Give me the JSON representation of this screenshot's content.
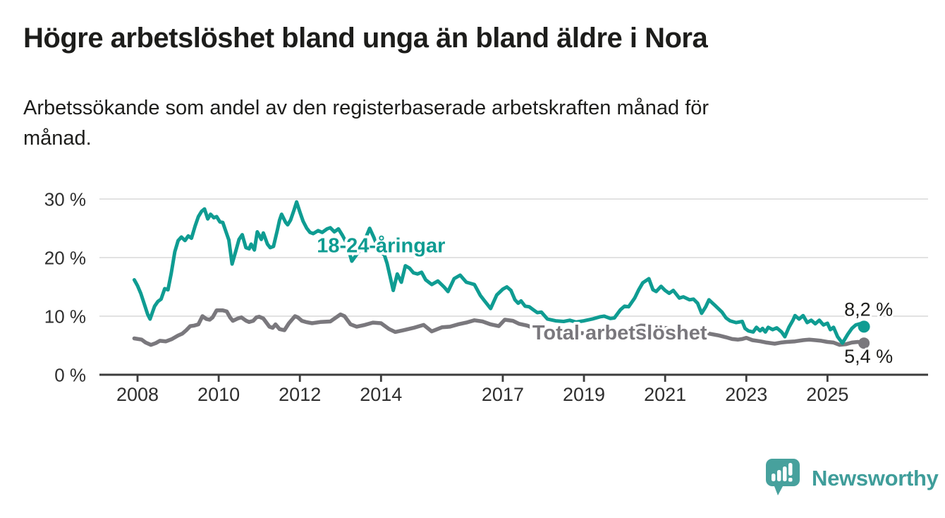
{
  "title": "Högre arbetslöshet bland unga än bland äldre i Nora",
  "subtitle_lines": [
    "Arbetssökande som andel av den registerbaserade arbetskraften månad för",
    "månad."
  ],
  "logo": {
    "text": "Newsworthy",
    "icon": "speech-bubble-bar-chart-icon",
    "text_color": "#3f9d9a",
    "bubble_color": "#47a19d"
  },
  "colors": {
    "young_series": "#0f9c92",
    "total_series": "#7a787d",
    "gridline": "#d9d9d9",
    "axis": "#3c3c3c",
    "text": "#1d1d1b"
  },
  "chart_data": {
    "type": "line",
    "title": "Högre arbetslöshet bland unga än bland äldre i Nora",
    "subtitle": "Arbetssökande som andel av den registerbaserade arbetskraften månad för månad.",
    "unit": "%",
    "grid": true,
    "y_axis": {
      "min": 0,
      "max": 30,
      "ticks": [
        {
          "value": 0,
          "label": "0 %"
        },
        {
          "value": 10,
          "label": "10 %"
        },
        {
          "value": 20,
          "label": "20 %"
        },
        {
          "value": 30,
          "label": "30 %"
        }
      ]
    },
    "x_axis": {
      "tick_years": [
        2008,
        2010,
        2012,
        2014,
        2017,
        2019,
        2021,
        2023,
        2025
      ],
      "start": 2007.9,
      "end": 2026.3
    },
    "series": [
      {
        "name": "18-24-åringar",
        "color": "#0f9c92",
        "line_width": 5,
        "end_value": 8.2,
        "end_label": "8,2 %",
        "label_anchor": {
          "year": 2014.0,
          "value": 20.9
        },
        "points": [
          [
            2007.92,
            16.2
          ],
          [
            2008.0,
            15.2
          ],
          [
            2008.08,
            13.9
          ],
          [
            2008.17,
            12.0
          ],
          [
            2008.25,
            10.3
          ],
          [
            2008.31,
            9.5
          ],
          [
            2008.42,
            11.7
          ],
          [
            2008.5,
            12.5
          ],
          [
            2008.58,
            12.9
          ],
          [
            2008.67,
            14.7
          ],
          [
            2008.75,
            14.5
          ],
          [
            2008.83,
            17.3
          ],
          [
            2008.92,
            21.0
          ],
          [
            2009.0,
            22.9
          ],
          [
            2009.08,
            23.5
          ],
          [
            2009.17,
            22.9
          ],
          [
            2009.25,
            23.7
          ],
          [
            2009.33,
            23.3
          ],
          [
            2009.42,
            25.4
          ],
          [
            2009.5,
            27.0
          ],
          [
            2009.58,
            27.9
          ],
          [
            2009.65,
            28.3
          ],
          [
            2009.73,
            26.6
          ],
          [
            2009.8,
            27.4
          ],
          [
            2009.88,
            26.8
          ],
          [
            2009.95,
            27.0
          ],
          [
            2010.03,
            26.1
          ],
          [
            2010.1,
            26.0
          ],
          [
            2010.17,
            24.6
          ],
          [
            2010.25,
            23.0
          ],
          [
            2010.33,
            18.9
          ],
          [
            2010.42,
            21.1
          ],
          [
            2010.5,
            23.1
          ],
          [
            2010.58,
            23.9
          ],
          [
            2010.67,
            21.7
          ],
          [
            2010.75,
            21.5
          ],
          [
            2010.8,
            22.3
          ],
          [
            2010.88,
            21.3
          ],
          [
            2010.95,
            24.4
          ],
          [
            2011.0,
            23.8
          ],
          [
            2011.05,
            23.1
          ],
          [
            2011.1,
            24.2
          ],
          [
            2011.2,
            22.3
          ],
          [
            2011.27,
            21.7
          ],
          [
            2011.35,
            21.9
          ],
          [
            2011.45,
            24.8
          ],
          [
            2011.5,
            26.4
          ],
          [
            2011.55,
            27.4
          ],
          [
            2011.65,
            26.0
          ],
          [
            2011.7,
            25.6
          ],
          [
            2011.77,
            26.4
          ],
          [
            2011.85,
            28.0
          ],
          [
            2011.92,
            29.5
          ],
          [
            2012.0,
            27.8
          ],
          [
            2012.08,
            26.2
          ],
          [
            2012.17,
            25.0
          ],
          [
            2012.25,
            24.3
          ],
          [
            2012.33,
            24.1
          ],
          [
            2012.45,
            24.6
          ],
          [
            2012.55,
            24.3
          ],
          [
            2012.67,
            24.9
          ],
          [
            2012.75,
            25.1
          ],
          [
            2012.85,
            24.4
          ],
          [
            2012.95,
            24.9
          ],
          [
            2013.05,
            23.8
          ],
          [
            2013.15,
            22.5
          ],
          [
            2013.28,
            19.4
          ],
          [
            2013.45,
            21.0
          ],
          [
            2013.6,
            23.0
          ],
          [
            2013.72,
            25.0
          ],
          [
            2013.82,
            23.5
          ],
          [
            2013.92,
            21.8
          ],
          [
            2014.0,
            20.8
          ],
          [
            2014.08,
            20.5
          ],
          [
            2014.15,
            19.0
          ],
          [
            2014.3,
            14.4
          ],
          [
            2014.4,
            17.2
          ],
          [
            2014.5,
            15.8
          ],
          [
            2014.6,
            18.6
          ],
          [
            2014.7,
            18.2
          ],
          [
            2014.8,
            17.4
          ],
          [
            2014.9,
            17.2
          ],
          [
            2015.0,
            17.5
          ],
          [
            2015.1,
            16.2
          ],
          [
            2015.25,
            15.4
          ],
          [
            2015.4,
            16.0
          ],
          [
            2015.55,
            15.0
          ],
          [
            2015.65,
            14.2
          ],
          [
            2015.8,
            16.4
          ],
          [
            2015.95,
            17.0
          ],
          [
            2016.1,
            15.8
          ],
          [
            2016.2,
            15.6
          ],
          [
            2016.3,
            15.4
          ],
          [
            2016.45,
            13.5
          ],
          [
            2016.55,
            12.6
          ],
          [
            2016.7,
            11.3
          ],
          [
            2016.85,
            13.6
          ],
          [
            2017.0,
            14.6
          ],
          [
            2017.1,
            15.0
          ],
          [
            2017.2,
            14.4
          ],
          [
            2017.3,
            12.8
          ],
          [
            2017.38,
            12.2
          ],
          [
            2017.45,
            12.6
          ],
          [
            2017.55,
            11.7
          ],
          [
            2017.65,
            11.6
          ],
          [
            2017.75,
            11.1
          ],
          [
            2017.85,
            10.6
          ],
          [
            2017.95,
            10.7
          ],
          [
            2018.1,
            9.5
          ],
          [
            2018.3,
            9.2
          ],
          [
            2018.5,
            9.1
          ],
          [
            2018.65,
            9.3
          ],
          [
            2018.8,
            9.0
          ],
          [
            2019.0,
            9.2
          ],
          [
            2019.2,
            9.5
          ],
          [
            2019.4,
            9.9
          ],
          [
            2019.5,
            10.0
          ],
          [
            2019.65,
            9.6
          ],
          [
            2019.75,
            9.7
          ],
          [
            2019.9,
            11.1
          ],
          [
            2020.0,
            11.7
          ],
          [
            2020.1,
            11.6
          ],
          [
            2020.25,
            13.1
          ],
          [
            2020.35,
            14.5
          ],
          [
            2020.45,
            15.7
          ],
          [
            2020.6,
            16.4
          ],
          [
            2020.7,
            14.5
          ],
          [
            2020.78,
            14.2
          ],
          [
            2020.9,
            15.1
          ],
          [
            2021.0,
            14.4
          ],
          [
            2021.1,
            13.9
          ],
          [
            2021.2,
            14.4
          ],
          [
            2021.35,
            13.1
          ],
          [
            2021.45,
            13.3
          ],
          [
            2021.6,
            12.8
          ],
          [
            2021.7,
            12.9
          ],
          [
            2021.8,
            12.2
          ],
          [
            2021.9,
            10.5
          ],
          [
            2022.0,
            11.6
          ],
          [
            2022.08,
            12.8
          ],
          [
            2022.17,
            12.2
          ],
          [
            2022.25,
            11.7
          ],
          [
            2022.4,
            10.7
          ],
          [
            2022.5,
            9.7
          ],
          [
            2022.6,
            9.2
          ],
          [
            2022.75,
            8.9
          ],
          [
            2022.9,
            9.1
          ],
          [
            2022.97,
            7.9
          ],
          [
            2023.05,
            7.5
          ],
          [
            2023.17,
            7.3
          ],
          [
            2023.25,
            8.1
          ],
          [
            2023.34,
            7.5
          ],
          [
            2023.4,
            7.9
          ],
          [
            2023.47,
            7.3
          ],
          [
            2023.54,
            8.1
          ],
          [
            2023.65,
            7.7
          ],
          [
            2023.75,
            8.0
          ],
          [
            2023.87,
            7.3
          ],
          [
            2023.95,
            6.5
          ],
          [
            2024.05,
            8.1
          ],
          [
            2024.15,
            9.3
          ],
          [
            2024.2,
            10.1
          ],
          [
            2024.3,
            9.5
          ],
          [
            2024.4,
            10.1
          ],
          [
            2024.5,
            8.9
          ],
          [
            2024.6,
            9.3
          ],
          [
            2024.7,
            8.7
          ],
          [
            2024.8,
            9.3
          ],
          [
            2024.9,
            8.5
          ],
          [
            2025.0,
            8.8
          ],
          [
            2025.07,
            7.7
          ],
          [
            2025.15,
            8.1
          ],
          [
            2025.25,
            6.5
          ],
          [
            2025.37,
            5.4
          ],
          [
            2025.5,
            6.9
          ],
          [
            2025.6,
            7.9
          ],
          [
            2025.7,
            8.5
          ],
          [
            2025.8,
            8.7
          ],
          [
            2025.9,
            8.2
          ]
        ]
      },
      {
        "name": "Total arbetslöshet",
        "color": "#7a787d",
        "line_width": 5.5,
        "end_value": 5.4,
        "end_label": "5,4 %",
        "label_anchor": {
          "year": 2019.88,
          "value": 6.05
        },
        "points": [
          [
            2007.92,
            6.2
          ],
          [
            2008.1,
            6.0
          ],
          [
            2008.2,
            5.5
          ],
          [
            2008.33,
            5.1
          ],
          [
            2008.45,
            5.4
          ],
          [
            2008.55,
            5.8
          ],
          [
            2008.7,
            5.7
          ],
          [
            2008.85,
            6.1
          ],
          [
            2009.0,
            6.7
          ],
          [
            2009.1,
            7.0
          ],
          [
            2009.2,
            7.6
          ],
          [
            2009.3,
            8.3
          ],
          [
            2009.4,
            8.4
          ],
          [
            2009.5,
            8.6
          ],
          [
            2009.6,
            10.0
          ],
          [
            2009.7,
            9.5
          ],
          [
            2009.78,
            9.4
          ],
          [
            2009.85,
            9.8
          ],
          [
            2009.95,
            11.0
          ],
          [
            2010.1,
            11.0
          ],
          [
            2010.2,
            10.8
          ],
          [
            2010.28,
            9.8
          ],
          [
            2010.35,
            9.2
          ],
          [
            2010.47,
            9.6
          ],
          [
            2010.56,
            9.8
          ],
          [
            2010.68,
            9.2
          ],
          [
            2010.75,
            9.0
          ],
          [
            2010.85,
            9.2
          ],
          [
            2010.93,
            9.8
          ],
          [
            2011.0,
            9.9
          ],
          [
            2011.1,
            9.6
          ],
          [
            2011.25,
            8.2
          ],
          [
            2011.33,
            8.0
          ],
          [
            2011.4,
            8.6
          ],
          [
            2011.5,
            7.8
          ],
          [
            2011.62,
            7.6
          ],
          [
            2011.73,
            8.8
          ],
          [
            2011.88,
            10.0
          ],
          [
            2011.95,
            9.8
          ],
          [
            2012.05,
            9.2
          ],
          [
            2012.15,
            9.0
          ],
          [
            2012.3,
            8.8
          ],
          [
            2012.5,
            9.0
          ],
          [
            2012.75,
            9.1
          ],
          [
            2013.0,
            10.3
          ],
          [
            2013.1,
            10.0
          ],
          [
            2013.25,
            8.6
          ],
          [
            2013.4,
            8.2
          ],
          [
            2013.6,
            8.5
          ],
          [
            2013.8,
            8.9
          ],
          [
            2014.0,
            8.8
          ],
          [
            2014.2,
            7.8
          ],
          [
            2014.35,
            7.3
          ],
          [
            2014.55,
            7.6
          ],
          [
            2014.8,
            8.0
          ],
          [
            2015.05,
            8.5
          ],
          [
            2015.25,
            7.4
          ],
          [
            2015.5,
            8.1
          ],
          [
            2015.7,
            8.2
          ],
          [
            2015.9,
            8.6
          ],
          [
            2016.1,
            8.9
          ],
          [
            2016.3,
            9.3
          ],
          [
            2016.5,
            9.1
          ],
          [
            2016.7,
            8.6
          ],
          [
            2016.9,
            8.3
          ],
          [
            2017.05,
            9.4
          ],
          [
            2017.25,
            9.2
          ],
          [
            2017.4,
            8.7
          ],
          [
            2017.6,
            8.4
          ],
          [
            2017.75,
            8.0
          ],
          [
            2018.0,
            7.7
          ],
          [
            2018.3,
            7.4
          ],
          [
            2018.6,
            7.2
          ],
          [
            2019.0,
            7.1
          ],
          [
            2019.4,
            7.2
          ],
          [
            2019.8,
            7.4
          ],
          [
            2020.1,
            7.7
          ],
          [
            2020.4,
            8.4
          ],
          [
            2020.7,
            8.3
          ],
          [
            2021.0,
            8.0
          ],
          [
            2021.4,
            7.7
          ],
          [
            2021.8,
            7.4
          ],
          [
            2022.1,
            7.0
          ],
          [
            2022.33,
            6.7
          ],
          [
            2022.5,
            6.4
          ],
          [
            2022.65,
            6.1
          ],
          [
            2022.8,
            6.0
          ],
          [
            2022.9,
            6.1
          ],
          [
            2023.0,
            6.3
          ],
          [
            2023.15,
            5.9
          ],
          [
            2023.35,
            5.7
          ],
          [
            2023.5,
            5.5
          ],
          [
            2023.7,
            5.3
          ],
          [
            2023.85,
            5.5
          ],
          [
            2024.0,
            5.6
          ],
          [
            2024.2,
            5.7
          ],
          [
            2024.4,
            5.9
          ],
          [
            2024.55,
            6.0
          ],
          [
            2024.7,
            5.9
          ],
          [
            2024.85,
            5.8
          ],
          [
            2025.0,
            5.6
          ],
          [
            2025.15,
            5.5
          ],
          [
            2025.3,
            5.1
          ],
          [
            2025.45,
            5.2
          ],
          [
            2025.6,
            5.5
          ],
          [
            2025.75,
            5.6
          ],
          [
            2025.9,
            5.4
          ]
        ]
      }
    ]
  }
}
